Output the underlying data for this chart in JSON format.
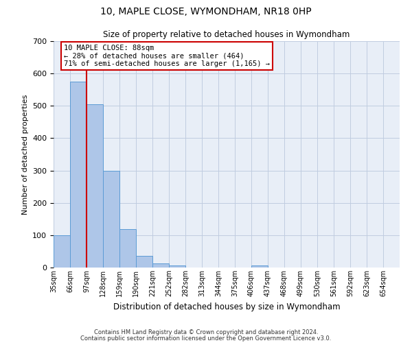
{
  "title": "10, MAPLE CLOSE, WYMONDHAM, NR18 0HP",
  "subtitle": "Size of property relative to detached houses in Wymondham",
  "xlabel": "Distribution of detached houses by size in Wymondham",
  "ylabel": "Number of detached properties",
  "bar_labels": [
    "35sqm",
    "66sqm",
    "97sqm",
    "128sqm",
    "159sqm",
    "190sqm",
    "221sqm",
    "252sqm",
    "282sqm",
    "313sqm",
    "344sqm",
    "375sqm",
    "406sqm",
    "437sqm",
    "468sqm",
    "499sqm",
    "530sqm",
    "561sqm",
    "592sqm",
    "623sqm",
    "654sqm"
  ],
  "bar_values": [
    100,
    575,
    505,
    300,
    118,
    37,
    13,
    7,
    0,
    0,
    0,
    0,
    7,
    0,
    0,
    0,
    0,
    0,
    0,
    0,
    0
  ],
  "bar_color": "#aec6e8",
  "bar_edge_color": "#5b9bd5",
  "background_color": "#e8eef7",
  "ylim": [
    0,
    700
  ],
  "yticks": [
    0,
    100,
    200,
    300,
    400,
    500,
    600,
    700
  ],
  "vline_x": 2,
  "vline_color": "#cc0000",
  "annotation_title": "10 MAPLE CLOSE: 88sqm",
  "annotation_line1": "← 28% of detached houses are smaller (464)",
  "annotation_line2": "71% of semi-detached houses are larger (1,165) →",
  "annotation_box_color": "#ffffff",
  "annotation_border_color": "#cc0000",
  "footnote1": "Contains HM Land Registry data © Crown copyright and database right 2024.",
  "footnote2": "Contains public sector information licensed under the Open Government Licence v3.0."
}
